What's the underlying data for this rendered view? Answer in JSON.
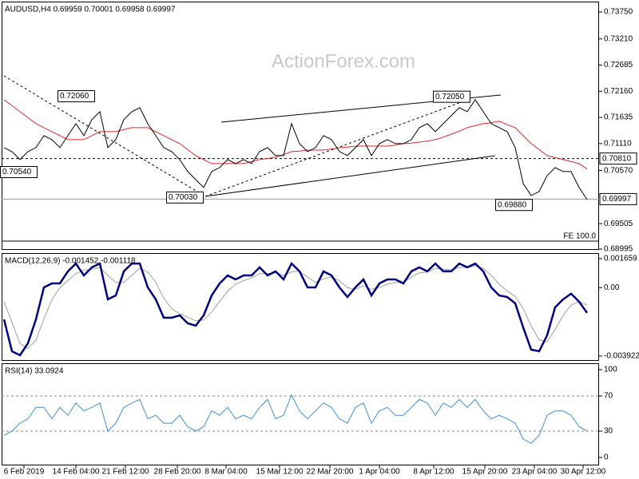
{
  "chart_data": [
    {
      "type": "line",
      "title": "AUDUSD,H4  0.69959 0.70001 0.69958 0.69997",
      "watermark": "ActionForex.com",
      "xlim": [
        -0.3,
        74.5
      ],
      "ylim": [
        0.68979,
        0.73958
      ],
      "yticks": [
        {
          "value": 0.7375,
          "label": "0.73750"
        },
        {
          "value": 0.7321,
          "label": "0.73210"
        },
        0.72685,
        {
          "value": 0.7216,
          "label": "0.72160"
        },
        0.71635,
        {
          "value": 0.7111,
          "label": "0.71110"
        },
        {
          "value": 0.7057,
          "label": "0.70570"
        },
        0.69505,
        0.68995
      ],
      "series": [
        {
          "color": "#000000",
          "values": [
            0.7103,
            0.7095,
            0.7079,
            0.7095,
            0.7103,
            0.7127,
            0.7119,
            0.7103,
            0.7127,
            0.7151,
            0.7127,
            0.7159,
            0.7175,
            0.7103,
            0.7119,
            0.7159,
            0.7175,
            0.7183,
            0.7151,
            0.7127,
            0.7103,
            0.7095,
            0.7079,
            0.7055,
            0.7039,
            0.7023,
            0.7055,
            0.7063,
            0.7079,
            0.7071,
            0.7079,
            0.7071,
            0.7095,
            0.7103,
            0.7087,
            0.7087,
            0.7151,
            0.7111,
            0.7095,
            0.7103,
            0.7127,
            0.7119,
            0.7095,
            0.7087,
            0.7103,
            0.7119,
            0.7087,
            0.7111,
            0.7119,
            0.7111,
            0.7111,
            0.7119,
            0.7143,
            0.7151,
            0.7135,
            0.7151,
            0.7167,
            0.7183,
            0.7175,
            0.7199,
            0.7175,
            0.7151,
            0.7143,
            0.7135,
            0.7103,
            0.7031,
            0.7007,
            0.7015,
            0.7047,
            0.7063,
            0.7055,
            0.7055,
            0.7023,
            0.6999
          ]
        },
        {
          "color": "#e3262a",
          "values": [
            0.7199,
            0.7187,
            0.7175,
            0.7163,
            0.7151,
            0.7143,
            0.7135,
            0.7127,
            0.7119,
            0.7119,
            0.7119,
            0.7127,
            0.7135,
            0.7135,
            0.7135,
            0.7139,
            0.7143,
            0.7143,
            0.7143,
            0.7135,
            0.7127,
            0.7119,
            0.7111,
            0.7099,
            0.7087,
            0.7079,
            0.7071,
            0.7071,
            0.7071,
            0.7071,
            0.7071,
            0.7075,
            0.7079,
            0.7081,
            0.7084,
            0.7089,
            0.7095,
            0.7096,
            0.7098,
            0.7098,
            0.7098,
            0.71,
            0.7103,
            0.7104,
            0.7106,
            0.7106,
            0.7106,
            0.7106,
            0.7106,
            0.7108,
            0.7111,
            0.7112,
            0.7114,
            0.7116,
            0.7119,
            0.7124,
            0.713,
            0.7136,
            0.7143,
            0.7147,
            0.7151,
            0.7153,
            0.7156,
            0.7149,
            0.7143,
            0.7127,
            0.7111,
            0.7099,
            0.7087,
            0.7083,
            0.7079,
            0.7075,
            0.7071,
            0.706
          ]
        }
      ],
      "levels": [
        {
          "value": 0.7081,
          "label": "0.70810",
          "dashed": true
        },
        {
          "value": 0.69997,
          "label": "0.69997",
          "dashed": false
        }
      ],
      "annotations": [
        {
          "label": "0.72060",
          "value": 0.7206
        },
        {
          "label": "0.70540",
          "value": 0.7054
        },
        {
          "label": "0.70030",
          "value": 0.7003
        },
        {
          "label": "0.72050",
          "value": 0.7205
        },
        {
          "label": "0.69880",
          "value": 0.6988
        }
      ],
      "fe": {
        "label": "FE 100.0",
        "value": 0.69155
      }
    },
    {
      "type": "line",
      "title": "MACD(12,26,9) -0.001452 -0.001118",
      "xlim": [
        -0.3,
        74.5
      ],
      "ylim": [
        -0.0042,
        0.00198
      ],
      "yticks": [
        0.001659,
        {
          "value": 0,
          "label": "0.00"
        },
        -0.003922
      ],
      "series": [
        {
          "color": "#00007f",
          "values": [
            -0.00182,
            -0.00365,
            -0.00388,
            -0.00319,
            -0.00182,
            1e-05,
            0.00024,
            0.00024,
            0.00093,
            0.00138,
            0.0007,
            0.00116,
            0.00138,
            -0.00067,
            -0.00045,
            0.00093,
            0.00138,
            0.00138,
            1e-05,
            -0.00067,
            -0.00173,
            -0.00173,
            -0.00159,
            -0.00205,
            -0.00218,
            -0.00159,
            -0.00045,
            0.00024,
            0.0007,
            0.00047,
            0.0007,
            0.0007,
            0.00116,
            0.0007,
            0.00093,
            0.00047,
            0.00138,
            0.00093,
            1e-05,
            1e-05,
            0.00093,
            0.0007,
            1e-05,
            -0.00054,
            1e-05,
            0.00047,
            -0.00045,
            0.00024,
            0.00047,
            0.00047,
            0.00024,
            0.00093,
            0.00116,
            0.00093,
            0.00138,
            0.00093,
            0.00093,
            0.00138,
            0.00116,
            0.00138,
            0.00093,
            1e-05,
            -0.00045,
            -0.00054,
            -0.0009,
            -0.00228,
            -0.00356,
            -0.00365,
            -0.00273,
            -0.00113,
            -0.00067,
            -0.00035,
            -0.00081,
            -0.00145
          ]
        },
        {
          "color": "#a0a0a0",
          "values": [
            -0.0008,
            -0.002,
            -0.0032,
            -0.0035,
            -0.003,
            -0.0018,
            -0.0007,
            0.0,
            0.0004,
            0.0008,
            0.001,
            0.00105,
            0.00115,
            0.0007,
            0.0003,
            0.0003,
            0.0007,
            0.0011,
            0.0009,
            0.0003,
            -0.0006,
            -0.0012,
            -0.0015,
            -0.0017,
            -0.0019,
            -0.00185,
            -0.0014,
            -0.0008,
            -0.0002,
            0.0002,
            0.0004,
            0.00055,
            0.0008,
            0.0008,
            0.00085,
            0.0007,
            0.0009,
            0.00095,
            0.0006,
            0.0003,
            0.0005,
            0.0006,
            0.0004,
            0.0,
            -0.0001,
            0.0001,
            -0.0001,
            0.0,
            0.0002,
            0.0003,
            0.0003,
            0.0006,
            0.00085,
            0.0009,
            0.0011,
            0.00105,
            0.001,
            0.00115,
            0.00115,
            0.00125,
            0.0011,
            0.0007,
            0.0002,
            -0.0002,
            -0.0005,
            -0.0012,
            -0.0022,
            -0.003,
            -0.0031,
            -0.0024,
            -0.0016,
            -0.001,
            -0.0008,
            -0.001
          ]
        }
      ]
    },
    {
      "type": "line",
      "title": "RSI(14) 33.0924",
      "xlim": [
        -0.3,
        74.5
      ],
      "ylim": [
        -9.1,
        107.3
      ],
      "yticks": [
        100,
        70,
        30,
        0
      ],
      "hlines": [
        70,
        30
      ],
      "series": [
        {
          "color": "#3d8fd6",
          "values": [
            25,
            30,
            39,
            44,
            57,
            57,
            44,
            57,
            48,
            62,
            53,
            57,
            62,
            30,
            39,
            57,
            62,
            66,
            44,
            48,
            39,
            39,
            48,
            35,
            30,
            35,
            53,
            48,
            57,
            44,
            48,
            44,
            57,
            66,
            44,
            48,
            71,
            53,
            44,
            53,
            62,
            57,
            44,
            39,
            57,
            62,
            39,
            53,
            57,
            48,
            48,
            57,
            66,
            62,
            48,
            62,
            57,
            66,
            57,
            66,
            53,
            44,
            48,
            44,
            39,
            21,
            16,
            25,
            48,
            53,
            53,
            48,
            35,
            30
          ]
        }
      ],
      "xticks": [
        {
          "value": 2.5,
          "label": "6 Feb 2019"
        },
        {
          "value": 9,
          "label": "14 Feb 04:00"
        },
        {
          "value": 15.2,
          "label": "21 Feb 12:00"
        },
        {
          "value": 21.7,
          "label": "28 Feb 20:00"
        },
        {
          "value": 27.8,
          "label": "8 Mar 04:00"
        },
        {
          "value": 34.5,
          "label": "15 Mar 12:00"
        },
        {
          "value": 40.8,
          "label": "22 Mar 20:00"
        },
        {
          "value": 47,
          "label": "1 Apr 04:00"
        },
        {
          "value": 53.8,
          "label": "8 Apr 12:00"
        },
        {
          "value": 60.2,
          "label": "15 Apr 20:00"
        },
        {
          "value": 66.4,
          "label": "23 Apr 04:00"
        },
        {
          "value": 72.5,
          "label": "30 Apr 12:00"
        }
      ]
    }
  ]
}
